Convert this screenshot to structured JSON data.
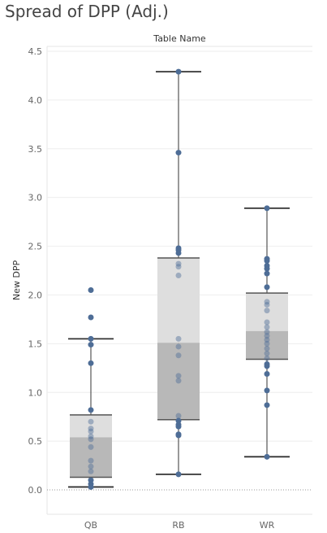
{
  "chart_data": {
    "type": "boxplot",
    "title": "Spread of DPP (Adj.)",
    "header": "Table Name",
    "xlabel": "",
    "ylabel": "New DPP",
    "ylim": [
      -0.25,
      4.55
    ],
    "yticks": [
      "0.0",
      "0.5",
      "1.0",
      "1.5",
      "2.0",
      "2.5",
      "3.0",
      "3.5",
      "4.0",
      "4.5"
    ],
    "categories": [
      "QB",
      "RB",
      "WR"
    ],
    "boxes": [
      {
        "category": "QB",
        "whisker_low": 0.03,
        "q1": 0.13,
        "median": 0.54,
        "q3": 0.77,
        "whisker_high": 1.55
      },
      {
        "category": "RB",
        "whisker_low": 0.16,
        "q1": 0.72,
        "median": 1.51,
        "q3": 2.38,
        "whisker_high": 4.29
      },
      {
        "category": "WR",
        "whisker_low": 0.34,
        "q1": 1.34,
        "median": 1.63,
        "q3": 2.02,
        "whisker_high": 2.89
      }
    ],
    "points": [
      {
        "category": "QB",
        "values": [
          2.05,
          1.77,
          1.55,
          1.49,
          1.3,
          0.82,
          0.7,
          0.63,
          0.6,
          0.55,
          0.52,
          0.44,
          0.3,
          0.24,
          0.19,
          0.1,
          0.06,
          0.03
        ]
      },
      {
        "category": "RB",
        "values": [
          4.29,
          3.46,
          2.48,
          2.46,
          2.43,
          2.32,
          2.29,
          2.2,
          1.55,
          1.47,
          1.38,
          1.17,
          1.12,
          0.76,
          0.71,
          0.67,
          0.65,
          0.57,
          0.56,
          0.16
        ]
      },
      {
        "category": "WR",
        "values": [
          2.89,
          2.37,
          2.35,
          2.3,
          2.27,
          2.22,
          2.08,
          1.93,
          1.9,
          1.84,
          1.72,
          1.67,
          1.62,
          1.58,
          1.54,
          1.5,
          1.45,
          1.4,
          1.35,
          1.29,
          1.27,
          1.19,
          1.02,
          0.87,
          0.34
        ]
      }
    ],
    "colors": {
      "point": "#4e6d96",
      "box_upper": "#dedede",
      "box_lower": "#b8b8b8",
      "whisker": "#333333",
      "grid": "#eeeeee",
      "zero_line": "#999999"
    },
    "grid": true
  }
}
